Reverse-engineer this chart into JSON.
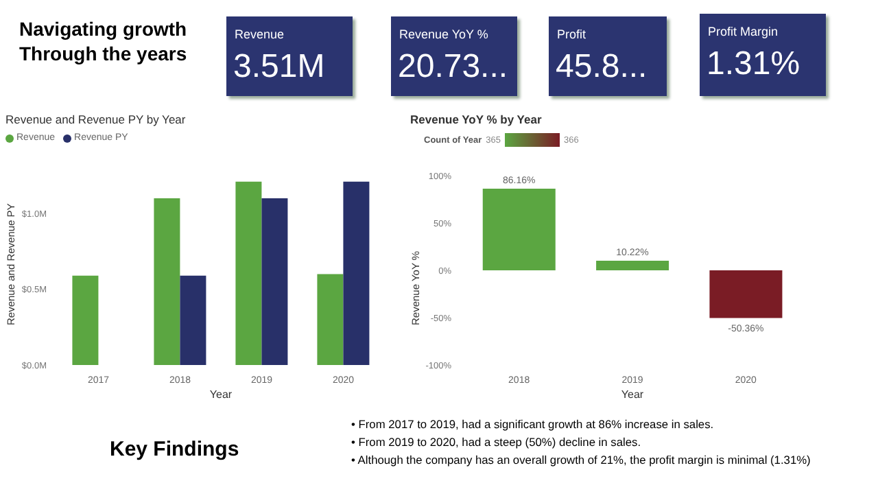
{
  "chart_data": [
    {
      "type": "other",
      "title": "Navigating growth Through the years",
      "color": "#2b3470",
      "annotations": [
        "Revenue",
        "3.51M",
        "Revenue YoY %",
        "20.73...",
        "Profit",
        "45.8...",
        "Profit Margin",
        "1.31%"
      ]
    },
    {
      "type": "bar",
      "title": "Revenue and Revenue PY by Year",
      "xlabel": "Year",
      "ylabel": "Revenue and Revenue PY",
      "categories": [
        "2017",
        "2018",
        "2019",
        "2020"
      ],
      "series": [
        {
          "name": "Revenue",
          "color": "#5ba641",
          "values": [
            0.59,
            1.1,
            1.21,
            0.6
          ]
        },
        {
          "name": "Revenue PY",
          "color": "#283069",
          "values": [
            null,
            0.59,
            1.1,
            1.21
          ]
        }
      ],
      "ylim": [
        0,
        1.25
      ],
      "yticks": [
        {
          "value": 0,
          "label": "$0.0M"
        },
        {
          "value": 0.5,
          "label": "$0.5M"
        },
        {
          "value": 1,
          "label": "$1.0M"
        }
      ],
      "legend": "top left",
      "grid": false
    },
    {
      "type": "bar",
      "title": "Revenue YoY % by Year",
      "xlabel": "Year",
      "ylabel": "Revenue YoY %",
      "categories": [
        "2018",
        "2019",
        "2020"
      ],
      "values": [
        86.16,
        10.22,
        -50.36
      ],
      "colors": [
        "#5ba641",
        "#5ba641",
        "#7a1c25"
      ],
      "value_labels": [
        "86.16%",
        "10.22%",
        "-50.36%"
      ],
      "ylim": [
        -100,
        100
      ],
      "yticks": [
        {
          "value": -100,
          "label": "-100%"
        },
        {
          "value": -50,
          "label": "-50%"
        },
        {
          "value": 0,
          "label": "0%"
        },
        {
          "value": 50,
          "label": "50%"
        },
        {
          "value": 100,
          "label": "100%"
        }
      ],
      "clabel": "Count of Year",
      "annotations": [
        "365",
        "366"
      ],
      "grid": false
    },
    {
      "type": "other",
      "title": "Key Findings",
      "annotations": [
        "• From 2017 to 2019, had a significant growth at 86% increase in sales.",
        "• From 2019 to 2020, had a steep (50%) decline in sales.",
        "• Although the company has an overall growth of 21%, the profit margin is minimal (1.31%)"
      ]
    }
  ]
}
